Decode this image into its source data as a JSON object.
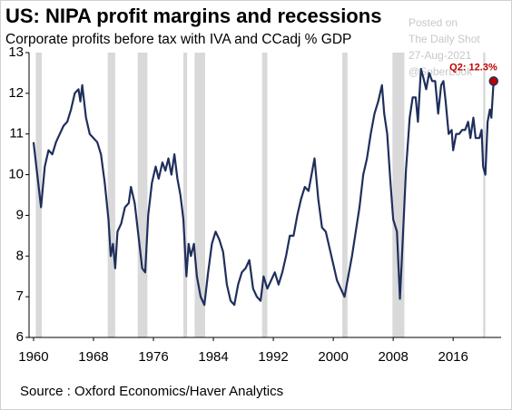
{
  "chart_data": {
    "type": "line",
    "title": "US: NIPA profit margins and recessions",
    "subtitle": "Corporate profits before tax with IVA and CCadj % GDP",
    "source": "Source : Oxford Economics/Haver Analytics",
    "watermark": [
      "Posted on",
      "The Daily Shot",
      "27-Aug-2021",
      "@SoberLook"
    ],
    "annotation": "Q2: 12.3%",
    "x": [
      1960.0,
      1960.5,
      1961.0,
      1961.5,
      1962.0,
      1962.5,
      1963.0,
      1963.5,
      1964.0,
      1964.5,
      1965.0,
      1965.5,
      1966.0,
      1966.25,
      1966.5,
      1967.0,
      1967.5,
      1968.0,
      1968.5,
      1969.0,
      1969.5,
      1970.0,
      1970.3,
      1970.6,
      1970.9,
      1971.2,
      1971.7,
      1972.2,
      1972.7,
      1973.0,
      1973.5,
      1974.0,
      1974.5,
      1974.9,
      1975.3,
      1975.8,
      1976.3,
      1976.7,
      1977.2,
      1977.6,
      1978.0,
      1978.4,
      1978.8,
      1979.2,
      1979.6,
      1980.0,
      1980.4,
      1980.7,
      1981.0,
      1981.4,
      1981.8,
      1982.3,
      1982.8,
      1983.3,
      1983.8,
      1984.3,
      1984.8,
      1985.3,
      1985.8,
      1986.3,
      1986.8,
      1987.3,
      1987.8,
      1988.3,
      1988.8,
      1989.3,
      1989.8,
      1990.3,
      1990.7,
      1991.2,
      1991.7,
      1992.2,
      1992.7,
      1993.2,
      1993.7,
      1994.2,
      1994.7,
      1995.2,
      1995.7,
      1996.2,
      1996.7,
      1997.2,
      1997.5,
      1998.0,
      1998.5,
      1999.0,
      1999.5,
      2000.0,
      2000.5,
      2001.0,
      2001.5,
      2002.0,
      2002.5,
      2003.0,
      2003.5,
      2004.0,
      2004.5,
      2005.0,
      2005.5,
      2006.0,
      2006.5,
      2006.8,
      2007.2,
      2007.6,
      2008.0,
      2008.5,
      2008.9,
      2009.3,
      2009.7,
      2010.2,
      2010.6,
      2011.0,
      2011.3,
      2011.7,
      2012.0,
      2012.4,
      2012.8,
      2013.2,
      2013.6,
      2014.0,
      2014.4,
      2014.7,
      2015.0,
      2015.4,
      2015.8,
      2016.0,
      2016.4,
      2016.8,
      2017.2,
      2017.6,
      2018.0,
      2018.3,
      2018.7,
      2019.0,
      2019.5,
      2019.8,
      2020.0,
      2020.3,
      2020.6,
      2020.9,
      2021.1,
      2021.4
    ],
    "series": [
      {
        "name": "Profit margin",
        "color": "#1f2f5c",
        "values": [
          10.8,
          10.0,
          9.2,
          10.2,
          10.6,
          10.5,
          10.8,
          11.0,
          11.2,
          11.3,
          11.6,
          12.0,
          12.1,
          11.8,
          12.2,
          11.4,
          11.0,
          10.9,
          10.8,
          10.5,
          9.8,
          8.9,
          8.0,
          8.3,
          7.7,
          8.6,
          8.8,
          9.2,
          9.3,
          9.7,
          9.3,
          8.5,
          7.7,
          7.6,
          9.0,
          9.8,
          10.2,
          9.9,
          10.3,
          10.1,
          10.4,
          10.0,
          10.5,
          9.9,
          9.5,
          8.9,
          7.5,
          8.3,
          8.0,
          8.3,
          7.5,
          7.0,
          6.8,
          7.6,
          8.3,
          8.6,
          8.4,
          8.1,
          7.3,
          6.9,
          6.8,
          7.3,
          7.6,
          7.7,
          7.9,
          7.2,
          7.0,
          6.9,
          7.5,
          7.2,
          7.4,
          7.6,
          7.3,
          7.6,
          8.0,
          8.5,
          8.5,
          9.0,
          9.4,
          9.7,
          9.6,
          10.1,
          10.4,
          9.4,
          8.7,
          8.6,
          8.2,
          7.8,
          7.4,
          7.2,
          7.0,
          7.5,
          8.0,
          8.6,
          9.2,
          10.0,
          10.4,
          11.0,
          11.5,
          11.8,
          12.2,
          11.5,
          11.0,
          9.9,
          8.9,
          8.6,
          6.95,
          8.5,
          10.1,
          11.4,
          11.9,
          11.9,
          11.3,
          12.6,
          12.4,
          12.1,
          12.5,
          12.3,
          12.3,
          11.5,
          12.2,
          12.3,
          11.8,
          11.0,
          11.1,
          10.6,
          11.0,
          11.0,
          11.1,
          11.1,
          11.3,
          10.9,
          11.4,
          10.9,
          10.9,
          11.1,
          10.2,
          10.0,
          11.3,
          11.6,
          11.4,
          12.3
        ]
      }
    ],
    "recessions": [
      [
        1960.3,
        1961.1
      ],
      [
        1969.9,
        1970.9
      ],
      [
        1973.9,
        1975.2
      ],
      [
        1980.0,
        1980.5
      ],
      [
        1981.5,
        1982.9
      ],
      [
        1990.5,
        1991.2
      ],
      [
        2001.2,
        2001.9
      ],
      [
        2007.9,
        2009.5
      ],
      [
        2020.0,
        2020.3
      ]
    ],
    "recession_color": "#d9d9d9",
    "annotation_color": "#c00000",
    "xlim": [
      1959.4,
      2022.4
    ],
    "ylim": [
      6,
      13
    ],
    "xticks": [
      1960,
      1968,
      1976,
      1984,
      1992,
      2000,
      2008,
      2016
    ],
    "yticks": [
      6,
      7,
      8,
      9,
      10,
      11,
      12,
      13
    ]
  }
}
